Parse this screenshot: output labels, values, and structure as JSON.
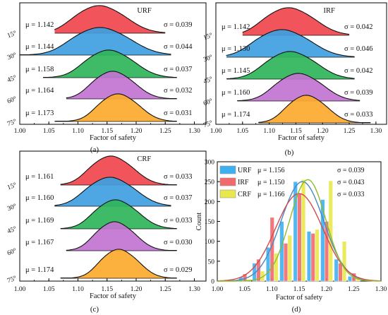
{
  "figure": {
    "panels": [
      {
        "id": "a",
        "caption": "(a)",
        "legend_label": "URF",
        "xlabel": "Factor of safety"
      },
      {
        "id": "b",
        "caption": "(b)",
        "legend_label": "IRF",
        "xlabel": "Factor of safety"
      },
      {
        "id": "c",
        "caption": "(c)",
        "legend_label": "CRF",
        "xlabel": "Factor of safety"
      },
      {
        "id": "d",
        "caption": "(d)",
        "xlabel": "Factor of safety",
        "ylabel": "Count"
      }
    ]
  },
  "chart_data": [
    {
      "type": "area",
      "subtype": "ridgeline",
      "panel": "a",
      "series_label": "URF",
      "xlabel": "Factor of safety",
      "xlim": [
        1.0,
        1.32
      ],
      "xticks": [
        "1.00",
        "1.05",
        "1.10",
        "1.15",
        "1.20",
        "1.25",
        "1.30"
      ],
      "category_ticks": [
        "15°",
        "30°",
        "45°",
        "60°",
        "75°"
      ],
      "colors": [
        "#f0474d",
        "#3fa0df",
        "#2fb55a",
        "#c273d1",
        "#fcaa2e"
      ],
      "ridges": [
        {
          "mu_label": "μ = 1.142",
          "sigma_label": "σ = 0.039",
          "mu": 1.142,
          "sigma": 0.039,
          "x_range": [
            1.06,
            1.25
          ]
        },
        {
          "mu_label": "μ = 1.144",
          "sigma_label": "σ = 0.044",
          "mu": 1.144,
          "sigma": 0.044,
          "x_range": [
            1.0,
            1.26
          ]
        },
        {
          "mu_label": "μ = 1.158",
          "sigma_label": "σ = 0.037",
          "mu": 1.158,
          "sigma": 0.037,
          "x_range": [
            1.04,
            1.27
          ]
        },
        {
          "mu_label": "μ = 1.164",
          "sigma_label": "σ = 0.032",
          "mu": 1.164,
          "sigma": 0.032,
          "x_range": [
            1.08,
            1.27
          ]
        },
        {
          "mu_label": "μ = 1.173",
          "sigma_label": "σ = 0.031",
          "mu": 1.173,
          "sigma": 0.031,
          "x_range": [
            1.06,
            1.27
          ]
        }
      ]
    },
    {
      "type": "area",
      "subtype": "ridgeline",
      "panel": "b",
      "series_label": "IRF",
      "xlabel": "Factor of safety",
      "xlim": [
        1.0,
        1.32
      ],
      "xticks": [
        "1.00",
        "1.05",
        "1.10",
        "1.15",
        "1.20",
        "1.25",
        "1.30"
      ],
      "category_ticks": [
        "15°",
        "30°",
        "45°",
        "60°",
        "75°"
      ],
      "colors": [
        "#f0474d",
        "#3fa0df",
        "#2fb55a",
        "#c273d1",
        "#fcaa2e"
      ],
      "ridges": [
        {
          "mu_label": "μ = 1.142",
          "sigma_label": "σ = 0.042",
          "mu": 1.142,
          "sigma": 0.042,
          "x_range": [
            1.05,
            1.25
          ]
        },
        {
          "mu_label": "μ = 1.130",
          "sigma_label": "σ = 0.046",
          "mu": 1.13,
          "sigma": 0.046,
          "x_range": [
            1.02,
            1.26
          ]
        },
        {
          "mu_label": "μ = 1.145",
          "sigma_label": "σ = 0.042",
          "mu": 1.145,
          "sigma": 0.042,
          "x_range": [
            1.02,
            1.26
          ]
        },
        {
          "mu_label": "μ = 1.160",
          "sigma_label": "σ = 0.039",
          "mu": 1.16,
          "sigma": 0.039,
          "x_range": [
            1.04,
            1.27
          ]
        },
        {
          "mu_label": "μ = 1.174",
          "sigma_label": "σ = 0.033",
          "mu": 1.174,
          "sigma": 0.033,
          "x_range": [
            1.08,
            1.29
          ]
        }
      ]
    },
    {
      "type": "area",
      "subtype": "ridgeline",
      "panel": "c",
      "series_label": "CRF",
      "xlabel": "Factor of safety",
      "xlim": [
        1.0,
        1.32
      ],
      "xticks": [
        "1.00",
        "1.05",
        "1.10",
        "1.15",
        "1.20",
        "1.25",
        "1.30"
      ],
      "category_ticks": [
        "15°",
        "30°",
        "45°",
        "60°",
        "75°"
      ],
      "colors": [
        "#f0474d",
        "#3fa0df",
        "#2fb55a",
        "#c273d1",
        "#fcaa2e"
      ],
      "ridges": [
        {
          "mu_label": "μ = 1.161",
          "sigma_label": "σ = 0.033",
          "mu": 1.161,
          "sigma": 0.033,
          "x_range": [
            1.07,
            1.27
          ]
        },
        {
          "mu_label": "μ = 1.160",
          "sigma_label": "σ = 0.037",
          "mu": 1.16,
          "sigma": 0.037,
          "x_range": [
            1.06,
            1.26
          ]
        },
        {
          "mu_label": "μ = 1.169",
          "sigma_label": "σ = 0.033",
          "mu": 1.169,
          "sigma": 0.033,
          "x_range": [
            1.07,
            1.27
          ]
        },
        {
          "mu_label": "μ = 1.167",
          "sigma_label": "σ = 0.030",
          "mu": 1.167,
          "sigma": 0.03,
          "x_range": [
            1.08,
            1.27
          ]
        },
        {
          "mu_label": "μ = 1.174",
          "sigma_label": "σ = 0.029",
          "mu": 1.174,
          "sigma": 0.029,
          "x_range": [
            1.07,
            1.27
          ]
        }
      ]
    },
    {
      "type": "bar",
      "subtype": "histogram_with_normal_fit",
      "panel": "d",
      "xlabel": "Factor of safety",
      "ylabel": "Count",
      "xlim": [
        1.0,
        1.3
      ],
      "ylim": [
        0,
        300
      ],
      "xticks": [
        "1.00",
        "1.05",
        "1.10",
        "1.15",
        "1.20",
        "1.25",
        "1.30"
      ],
      "yticks": [
        "0",
        "50",
        "100",
        "150",
        "200",
        "250",
        "300"
      ],
      "bins": [
        1.05,
        1.075,
        1.1,
        1.125,
        1.15,
        1.175,
        1.2,
        1.225,
        1.25
      ],
      "series": [
        {
          "name": "URF",
          "mu_label": "μ = 1.156",
          "sigma_label": "σ = 0.039",
          "mu": 1.156,
          "sigma": 0.039,
          "color": "#3fb0ef",
          "fit_color": "#4a86c8",
          "values": [
            10,
            45,
            85,
            150,
            250,
            125,
            205,
            55,
            12
          ]
        },
        {
          "name": "IRF",
          "mu_label": "μ = 1.150",
          "sigma_label": "σ = 0.043",
          "mu": 1.15,
          "sigma": 0.043,
          "color": "#f06a6e",
          "fit_color": "#d24b4b",
          "values": [
            18,
            55,
            160,
            95,
            220,
            120,
            150,
            45,
            20
          ]
        },
        {
          "name": "CRF",
          "mu_label": "μ = 1.166",
          "sigma_label": "σ = 0.033",
          "mu": 1.166,
          "sigma": 0.033,
          "color": "#e8e84a",
          "fit_color": "#8fba2a",
          "values": [
            5,
            25,
            70,
            115,
            255,
            130,
            252,
            100,
            8
          ]
        }
      ]
    }
  ]
}
